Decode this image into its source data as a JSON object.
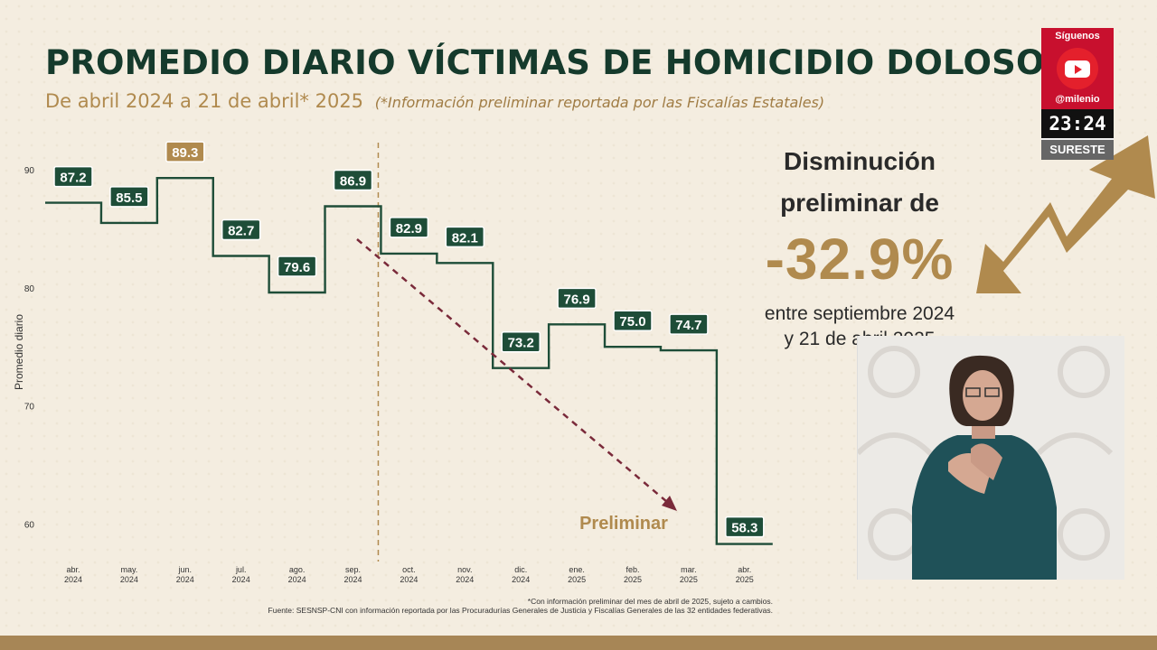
{
  "header": {
    "title": "PROMEDIO DIARIO VÍCTIMAS DE HOMICIDIO DOLOSO",
    "subtitle": "De abril 2024 a 21 de abril* 2025",
    "subtitle_note": "(*Información preliminar reportada por las Fiscalías Estatales)"
  },
  "callout": {
    "line1": "Disminución",
    "line2": "preliminar de",
    "percent": "-32.9%",
    "between1": "entre septiembre 2024",
    "between2": "y 21 de abril 2025"
  },
  "badge": {
    "follow": "Síguenos",
    "handle": "@milenio",
    "time": "23:24",
    "region": "SURESTE"
  },
  "footer": {
    "note": "*Con información preliminar del mes de abril de 2025, sujeto a cambios.",
    "source": "Fuente: SESNSP-CNI con información reportada por las Procuradurías Generales de Justicia y Fiscalías Generales de las 32 entidades federativas."
  },
  "colors": {
    "dark_green": "#1e4d38",
    "gold": "#b08a4e",
    "arrow": "#7a2a3a",
    "background": "#f4ede0"
  },
  "chart_data": {
    "type": "line",
    "step": true,
    "ylabel": "Promedio diario",
    "ylim": [
      58,
      91
    ],
    "yticks": [
      60,
      70,
      80,
      90
    ],
    "categories": [
      [
        "abr.",
        "2024"
      ],
      [
        "may.",
        "2024"
      ],
      [
        "jun.",
        "2024"
      ],
      [
        "jul.",
        "2024"
      ],
      [
        "ago.",
        "2024"
      ],
      [
        "sep.",
        "2024"
      ],
      [
        "oct.",
        "2024"
      ],
      [
        "nov.",
        "2024"
      ],
      [
        "dic.",
        "2024"
      ],
      [
        "ene.",
        "2025"
      ],
      [
        "feb.",
        "2025"
      ],
      [
        "mar.",
        "2025"
      ],
      [
        "abr.",
        "2025"
      ]
    ],
    "values": [
      87.2,
      85.5,
      89.3,
      82.7,
      79.6,
      86.9,
      82.9,
      82.1,
      73.2,
      76.9,
      75.0,
      74.7,
      58.3
    ],
    "value_labels": [
      "87.2",
      "85.5",
      "89.3",
      "82.7",
      "79.6",
      "86.9",
      "82.9",
      "82.1",
      "73.2",
      "76.9",
      "75.0",
      "74.7",
      "58.3"
    ],
    "highlight_index": 2,
    "trend_label": "Preliminar"
  }
}
